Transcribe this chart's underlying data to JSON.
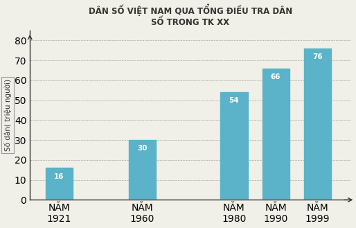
{
  "title": "DÂN SỐ VIỆT NAM QUA TỔNG ĐIỀU TRA DÂN\nSỐ TRONG TK XX",
  "ylabel": "Số dân( triệu người)",
  "categories": [
    "NĂM\n1921",
    "NĂM\n1960",
    "NĂM\n1980",
    "NĂM\n1990",
    "NĂM\n1999"
  ],
  "values": [
    16,
    30,
    54,
    66,
    76
  ],
  "bar_color": "#5AB3C8",
  "bar_positions": [
    1,
    3,
    5.2,
    6.2,
    7.2
  ],
  "bar_width": 0.65,
  "xlim": [
    0.3,
    8.0
  ],
  "ylim": [
    0,
    85
  ],
  "yticks": [
    0,
    10,
    20,
    30,
    40,
    50,
    60,
    70,
    80
  ],
  "title_fontsize": 8.5,
  "label_fontsize": 7.5,
  "tick_fontsize": 7.5,
  "value_fontsize": 7.5,
  "background_color": "#f0efe8"
}
